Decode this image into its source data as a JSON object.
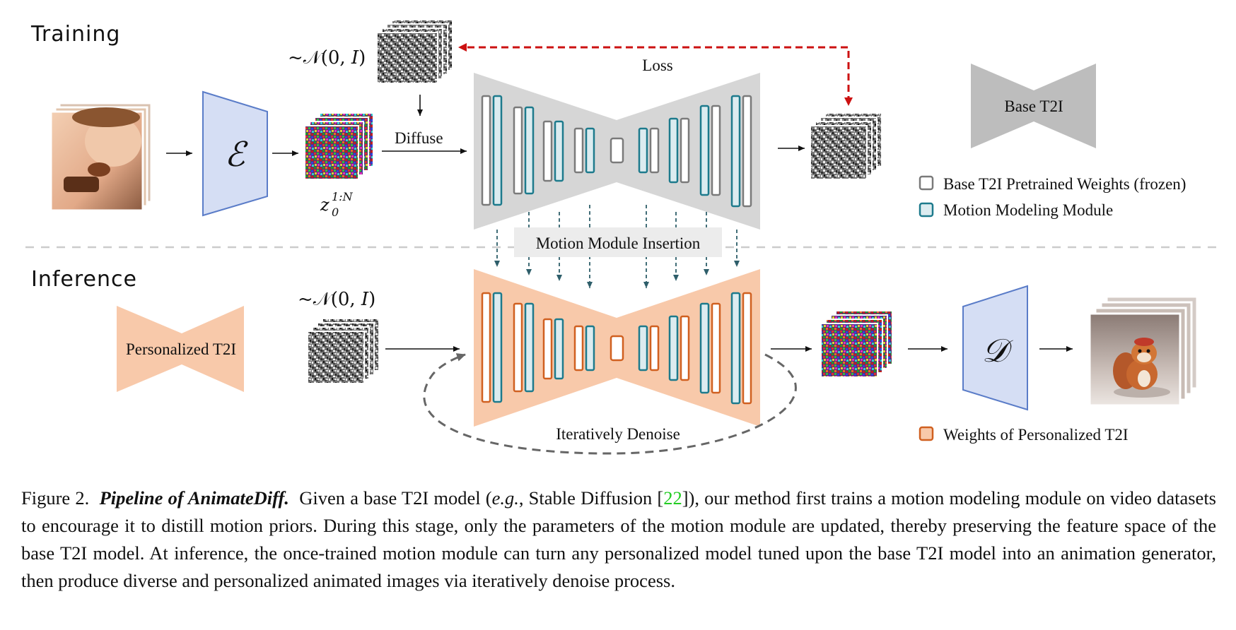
{
  "diagram": {
    "training_label": "Training",
    "inference_label": "Inference",
    "noise_label_top": "~𝒩(0, 𝐼)",
    "noise_label_bottom": "~𝒩(0, 𝐼)",
    "encoder_symbol": "ℰ",
    "decoder_symbol": "𝒟",
    "latent_label": "z",
    "latent_superscript": "1:N",
    "latent_subscript": "0",
    "diffuse_label": "Diffuse",
    "loss_label": "Loss",
    "motion_insertion_label": "Motion Module Insertion",
    "iterative_denoise_label": "Iteratively Denoise",
    "base_t2i_label": "Base T2I",
    "personalized_t2i_label": "Personalized T2I",
    "legend": [
      {
        "label": "Base T2I Pretrained Weights (frozen)",
        "color": "#7a7a7a"
      },
      {
        "label": "Motion Modeling Module",
        "color": "#1d7a8c"
      },
      {
        "label": "Weights of Personalized T2I",
        "color": "#d06020"
      }
    ],
    "colors": {
      "unet_gray": "#d6d6d6",
      "unet_orange": "#f8c9aa",
      "frozen_block": "#7a7a7a",
      "motion_block": "#1d7a8c",
      "personal_block": "#d06020",
      "encoder_fill": "#d5def4",
      "encoder_stroke": "#5a7cc8",
      "loss_arrow": "#cc1111",
      "insertion_arrow": "#2e5e6a"
    }
  },
  "caption": {
    "figure_number": "Figure 2.",
    "title": "Pipeline of AnimateDiff.",
    "part1": "Given a base T2I model (",
    "eg": "e.g.",
    "part2": ", Stable Diffusion [",
    "ref": "22",
    "part3": "]), our method first trains a motion modeling module on video datasets to encourage it to distill motion priors. During this stage, only the parameters of the motion module are updated, thereby preserving the feature space of the base T2I model. At inference, the once-trained motion module can turn any personalized model tuned upon the base T2I model into an animation generator, then produce diverse and personalized animated images via iteratively denoise process."
  }
}
